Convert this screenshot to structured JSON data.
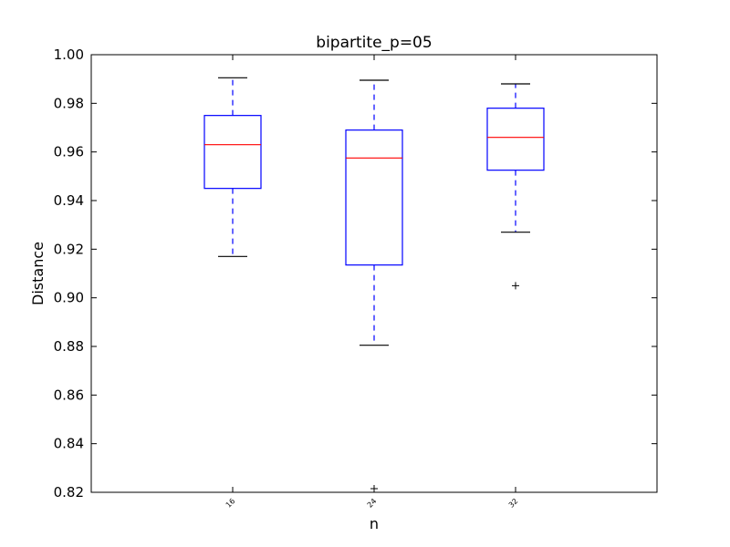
{
  "chart_data": {
    "type": "box",
    "title": "bipartite_p=05",
    "xlabel": "n",
    "ylabel": "Distance",
    "ylim": [
      0.82,
      1.0
    ],
    "yticks": [
      "0.82",
      "0.84",
      "0.86",
      "0.88",
      "0.90",
      "0.92",
      "0.94",
      "0.96",
      "0.98",
      "1.00"
    ],
    "categories": [
      "16",
      "24",
      "32"
    ],
    "boxes": [
      {
        "category": "16",
        "whisker_low": 0.917,
        "q1": 0.945,
        "median": 0.963,
        "q3": 0.975,
        "whisker_high": 0.9905,
        "outliers": []
      },
      {
        "category": "24",
        "whisker_low": 0.8805,
        "q1": 0.9135,
        "median": 0.9575,
        "q3": 0.969,
        "whisker_high": 0.9895,
        "outliers": [
          0.8215
        ]
      },
      {
        "category": "32",
        "whisker_low": 0.927,
        "q1": 0.9525,
        "median": 0.966,
        "q3": 0.978,
        "whisker_high": 0.988,
        "outliers": [
          0.905
        ]
      }
    ],
    "colors": {
      "box": "#0000ff",
      "median": "#ff0000",
      "outlier": "#000000",
      "axes": "#000000"
    },
    "grid": false
  }
}
